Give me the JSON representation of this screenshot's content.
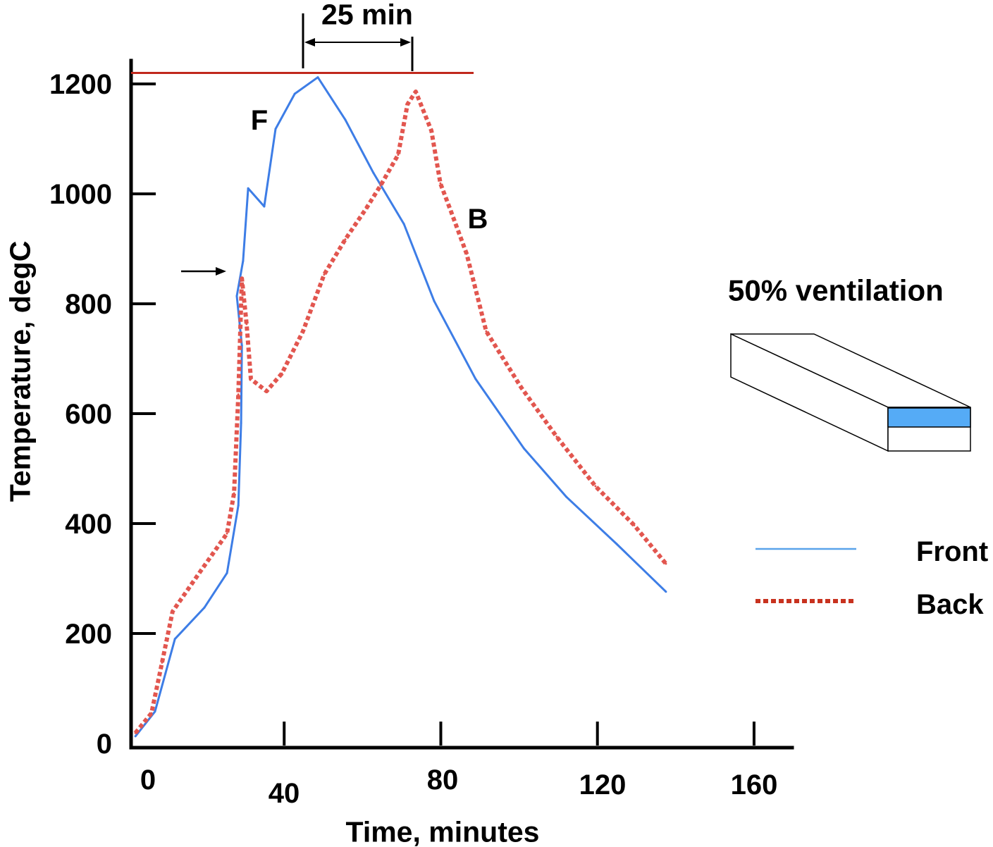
{
  "chart_data": {
    "type": "line",
    "xlabel": "Time, minutes",
    "ylabel": "Temperature, degC",
    "xlim": [
      0,
      170
    ],
    "ylim": [
      0,
      1245
    ],
    "xticks": [
      0,
      40,
      80,
      120,
      160
    ],
    "xtick_labels": [
      "0",
      "40",
      "80",
      "120",
      "160"
    ],
    "yticks": [
      0,
      200,
      400,
      600,
      800,
      1000,
      1200
    ],
    "ytick_labels": [
      "0",
      "200",
      "400",
      "600",
      "800",
      "1000",
      "1200"
    ],
    "grid": false,
    "legend": "right",
    "series": [
      {
        "name": "Front",
        "line_style": "solid",
        "color": "#3d7de6",
        "legend_color": "#5aa3ea",
        "x": [
          2.0,
          7.0,
          9.7,
          12.1,
          19.6,
          25.4,
          28.3,
          29.0,
          29.2,
          27.9,
          29.5,
          30.8,
          34.9,
          37.8,
          42.7,
          48.6,
          55.6,
          62.8,
          70.6,
          78.3,
          88.9,
          101.2,
          112.0,
          124.9,
          137.5
        ],
        "y": [
          13,
          58,
          128,
          190,
          247,
          310,
          433,
          583,
          724,
          814,
          878,
          1010,
          977,
          1118,
          1182,
          1212,
          1135,
          1038,
          945,
          805,
          663,
          537,
          449,
          363,
          276
        ]
      },
      {
        "name": "Back",
        "line_style": "dotted",
        "color": "#e2564f",
        "legend_color": "#c8321f",
        "x": [
          2.0,
          6.1,
          8.8,
          11.5,
          18.7,
          25.4,
          27.2,
          28.3,
          29.2,
          30.4,
          31.5,
          35.5,
          39.4,
          44.8,
          50.2,
          55.6,
          61.0,
          64.6,
          69.1,
          71.5,
          73.6,
          77.6,
          79.9,
          82.6,
          86.6,
          91.6,
          100.6,
          109.6,
          119.5,
          129.4,
          137.5
        ],
        "y": [
          19,
          55,
          147,
          240,
          314,
          382,
          455,
          635,
          846,
          763,
          663,
          641,
          673,
          750,
          853,
          917,
          974,
          1015,
          1071,
          1163,
          1186,
          1115,
          1019,
          968,
          891,
          750,
          647,
          558,
          468,
          397,
          327
        ]
      }
    ],
    "reference_line": {
      "y": 1220,
      "color": "#c0281c"
    },
    "annotations": {
      "span_label": "25 min",
      "front_label": "F",
      "back_label": "B",
      "condition": "50% ventilation"
    }
  },
  "diagram": {
    "opening_color": "#55abf6"
  }
}
